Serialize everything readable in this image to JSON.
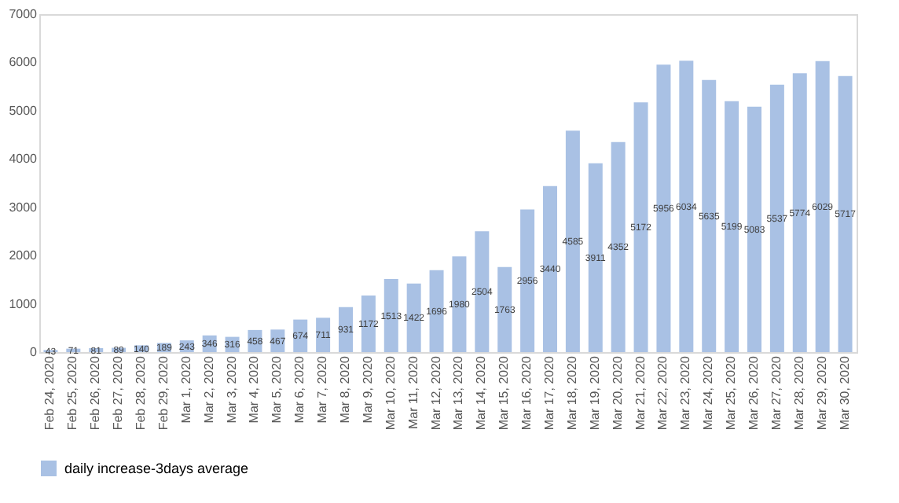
{
  "chart_data": {
    "type": "bar",
    "categories": [
      "Feb 24, 2020",
      "Feb 25, 2020",
      "Feb 26, 2020",
      "Feb 27, 2020",
      "Feb 28, 2020",
      "Feb 29, 2020",
      "Mar 1, 2020",
      "Mar 2, 2020",
      "Mar 3, 2020",
      "Mar 4, 2020",
      "Mar 5, 2020",
      "Mar 6, 2020",
      "Mar 7, 2020",
      "Mar 8, 2020",
      "Mar 9, 2020",
      "Mar 10, 2020",
      "Mar 11, 2020",
      "Mar 12, 2020",
      "Mar 13, 2020",
      "Mar 14, 2020",
      "Mar 15, 2020",
      "Mar 16, 2020",
      "Mar 17, 2020",
      "Mar 18, 2020",
      "Mar 19, 2020",
      "Mar 20, 2020",
      "Mar 21, 2020",
      "Mar 22, 2020",
      "Mar 23, 2020",
      "Mar 24, 2020",
      "Mar 25, 2020",
      "Mar 26, 2020",
      "Mar 27, 2020",
      "Mar 28, 2020",
      "Mar 29, 2020",
      "Mar 30, 2020"
    ],
    "series": [
      {
        "name": "daily increase-3days average",
        "color": "#a9c1e4",
        "values": [
          43,
          71,
          81,
          89,
          140,
          189,
          243,
          346,
          316,
          458,
          467,
          674,
          711,
          931,
          1172,
          1513,
          1422,
          1696,
          1980,
          2504,
          1763,
          2956,
          3440,
          4585,
          3911,
          4352,
          5172,
          5956,
          6034,
          5635,
          5199,
          5083,
          5537,
          5774,
          6029,
          5717
        ]
      }
    ],
    "ylim": [
      0,
      7000
    ],
    "yticks": [
      0,
      1000,
      2000,
      3000,
      4000,
      5000,
      6000,
      7000
    ],
    "data_labels": true,
    "grid": false,
    "legend": "bottom"
  }
}
